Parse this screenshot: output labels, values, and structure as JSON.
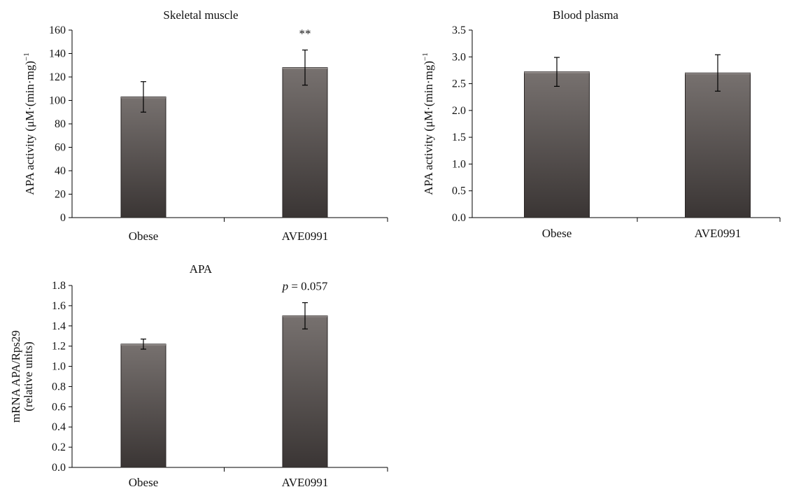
{
  "colors": {
    "bar_top": "#77716f",
    "bar_bottom": "#3a3534",
    "bar_edge": "#2a2625",
    "axis": "#000000"
  },
  "chart_data": [
    {
      "type": "bar",
      "title": "Skeletal muscle",
      "ylabel": "APA activity (μM·(min·mg)",
      "ylabel_sup": "−1",
      "ylim": [
        0,
        160
      ],
      "yticks": [
        "0",
        "20",
        "40",
        "60",
        "80",
        "100",
        "120",
        "140",
        "160"
      ],
      "categories": [
        "Obese",
        "AVE0991"
      ],
      "values": [
        103,
        128
      ],
      "errors": [
        13,
        15
      ],
      "annotations": [
        "",
        "**"
      ]
    },
    {
      "type": "bar",
      "title": "Blood plasma",
      "ylabel": "APA activity (μM·(min·mg)",
      "ylabel_sup": "−1",
      "ylim": [
        0,
        3.5
      ],
      "yticks": [
        "0.0",
        "0.5",
        "1.0",
        "1.5",
        "2.0",
        "2.5",
        "3.0",
        "3.5"
      ],
      "categories": [
        "Obese",
        "AVE0991"
      ],
      "values": [
        2.72,
        2.7
      ],
      "errors": [
        0.27,
        0.34
      ],
      "annotations": [
        "",
        ""
      ]
    },
    {
      "type": "bar",
      "title": "APA",
      "ylabel": "mRNA APA/Rps29",
      "ylabel2": "(relative units)",
      "ylim": [
        0,
        1.8
      ],
      "yticks": [
        "0.0",
        "0.2",
        "0.4",
        "0.6",
        "0.8",
        "1.0",
        "1.2",
        "1.4",
        "1.6",
        "1.8"
      ],
      "categories": [
        "Obese",
        "AVE0991"
      ],
      "values": [
        1.22,
        1.5
      ],
      "errors": [
        0.05,
        0.13
      ],
      "annotations": [
        "",
        "p = 0.057"
      ]
    }
  ]
}
